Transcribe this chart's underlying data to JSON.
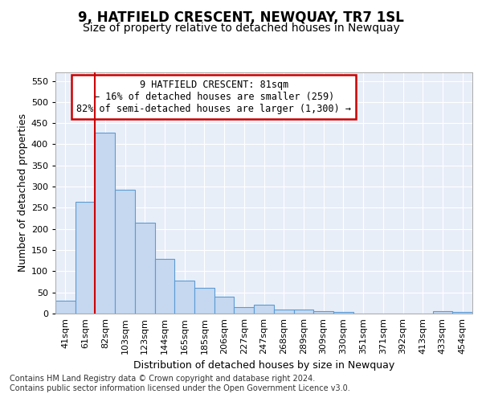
{
  "title": "9, HATFIELD CRESCENT, NEWQUAY, TR7 1SL",
  "subtitle": "Size of property relative to detached houses in Newquay",
  "xlabel": "Distribution of detached houses by size in Newquay",
  "ylabel": "Number of detached properties",
  "bar_labels": [
    "41sqm",
    "61sqm",
    "82sqm",
    "103sqm",
    "123sqm",
    "144sqm",
    "165sqm",
    "185sqm",
    "206sqm",
    "227sqm",
    "247sqm",
    "268sqm",
    "289sqm",
    "309sqm",
    "330sqm",
    "351sqm",
    "371sqm",
    "392sqm",
    "413sqm",
    "433sqm",
    "454sqm"
  ],
  "bar_values": [
    30,
    265,
    428,
    293,
    215,
    130,
    77,
    60,
    40,
    15,
    20,
    10,
    10,
    5,
    3,
    0,
    0,
    0,
    0,
    5,
    3
  ],
  "bar_color": "#c5d8f0",
  "bar_edge_color": "#5b9bd5",
  "annotation_text": "9 HATFIELD CRESCENT: 81sqm\n← 16% of detached houses are smaller (259)\n82% of semi-detached houses are larger (1,300) →",
  "annotation_box_color": "#ffffff",
  "annotation_box_edge_color": "#cc0000",
  "vline_color": "#cc0000",
  "yticks": [
    0,
    50,
    100,
    150,
    200,
    250,
    300,
    350,
    400,
    450,
    500,
    550
  ],
  "ylim": [
    0,
    570
  ],
  "background_color": "#e8eef8",
  "grid_color": "#ffffff",
  "footer_text": "Contains HM Land Registry data © Crown copyright and database right 2024.\nContains public sector information licensed under the Open Government Licence v3.0.",
  "title_fontsize": 12,
  "subtitle_fontsize": 10,
  "xlabel_fontsize": 9,
  "ylabel_fontsize": 9,
  "annotation_fontsize": 8.5,
  "tick_fontsize": 8,
  "footer_fontsize": 7
}
